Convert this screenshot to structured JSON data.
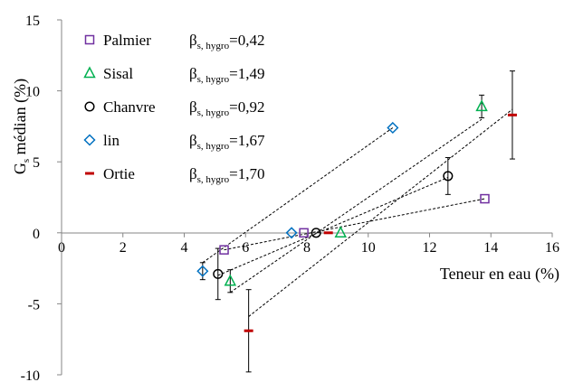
{
  "chart_data": {
    "type": "scatter",
    "xlabel": "Teneur en eau (%)",
    "ylabel_main": "G",
    "ylabel_sub": "s",
    "ylabel_rest": " médian (%)",
    "xlim": [
      0,
      16
    ],
    "ylim": [
      -10,
      15
    ],
    "x_ticks": [
      0,
      2,
      4,
      6,
      8,
      10,
      12,
      14,
      16
    ],
    "y_ticks": [
      -10,
      -5,
      0,
      5,
      10,
      15
    ],
    "x_tick_labels": [
      "0",
      "2",
      "4",
      "6",
      "8",
      "10",
      "12",
      "14",
      "16"
    ],
    "y_tick_labels": [
      "-10",
      "-5",
      "0",
      "5",
      "10",
      "15"
    ],
    "grid": false,
    "legend_position": "top-left",
    "beta_label_main": "β",
    "beta_label_sub": "s, hygro",
    "series": [
      {
        "name": "Palmier",
        "beta": "=0,42",
        "marker": "square",
        "color": "#7030a0",
        "points": [
          {
            "x": 5.3,
            "y": -1.2,
            "err": 0
          },
          {
            "x": 7.9,
            "y": 0.0,
            "err": 0
          },
          {
            "x": 13.8,
            "y": 2.4,
            "err": 0
          }
        ],
        "fit": [
          [
            5.3,
            -1.2
          ],
          [
            13.8,
            2.4
          ]
        ]
      },
      {
        "name": "Sisal",
        "beta": "=1,49",
        "marker": "triangle",
        "color": "#00b050",
        "points": [
          {
            "x": 5.5,
            "y": -3.4,
            "err": 0.8
          },
          {
            "x": 9.1,
            "y": 0.0,
            "err": 0
          },
          {
            "x": 13.7,
            "y": 8.9,
            "err": 0.8
          }
        ],
        "fit": [
          [
            5.5,
            -4.2
          ],
          [
            13.7,
            8.0
          ]
        ]
      },
      {
        "name": "Chanvre",
        "beta": "=0,92",
        "marker": "circle",
        "color": "#000000",
        "points": [
          {
            "x": 5.1,
            "y": -2.9,
            "err": 1.8
          },
          {
            "x": 8.3,
            "y": 0.0,
            "err": 0
          },
          {
            "x": 12.6,
            "y": 4.0,
            "err": 1.3
          }
        ],
        "fit": [
          [
            5.1,
            -3.0
          ],
          [
            12.6,
            3.9
          ]
        ]
      },
      {
        "name": "lin",
        "beta": "=1,67",
        "marker": "diamond",
        "color": "#0070c0",
        "points": [
          {
            "x": 4.6,
            "y": -2.7,
            "err": 0.6
          },
          {
            "x": 7.5,
            "y": 0.0,
            "err": 0
          },
          {
            "x": 10.8,
            "y": 7.4,
            "err": 0
          }
        ],
        "fit": [
          [
            4.6,
            -2.1
          ],
          [
            10.8,
            7.4
          ]
        ]
      },
      {
        "name": "Ortie",
        "beta": "=1,70",
        "marker": "dash",
        "color": "#c00000",
        "points": [
          {
            "x": 6.1,
            "y": -6.9,
            "err": 2.9
          },
          {
            "x": 8.7,
            "y": 0.0,
            "err": 0
          },
          {
            "x": 14.7,
            "y": 8.3,
            "err": 3.1
          }
        ],
        "fit": [
          [
            6.1,
            -5.9
          ],
          [
            14.7,
            8.7
          ]
        ]
      }
    ]
  }
}
